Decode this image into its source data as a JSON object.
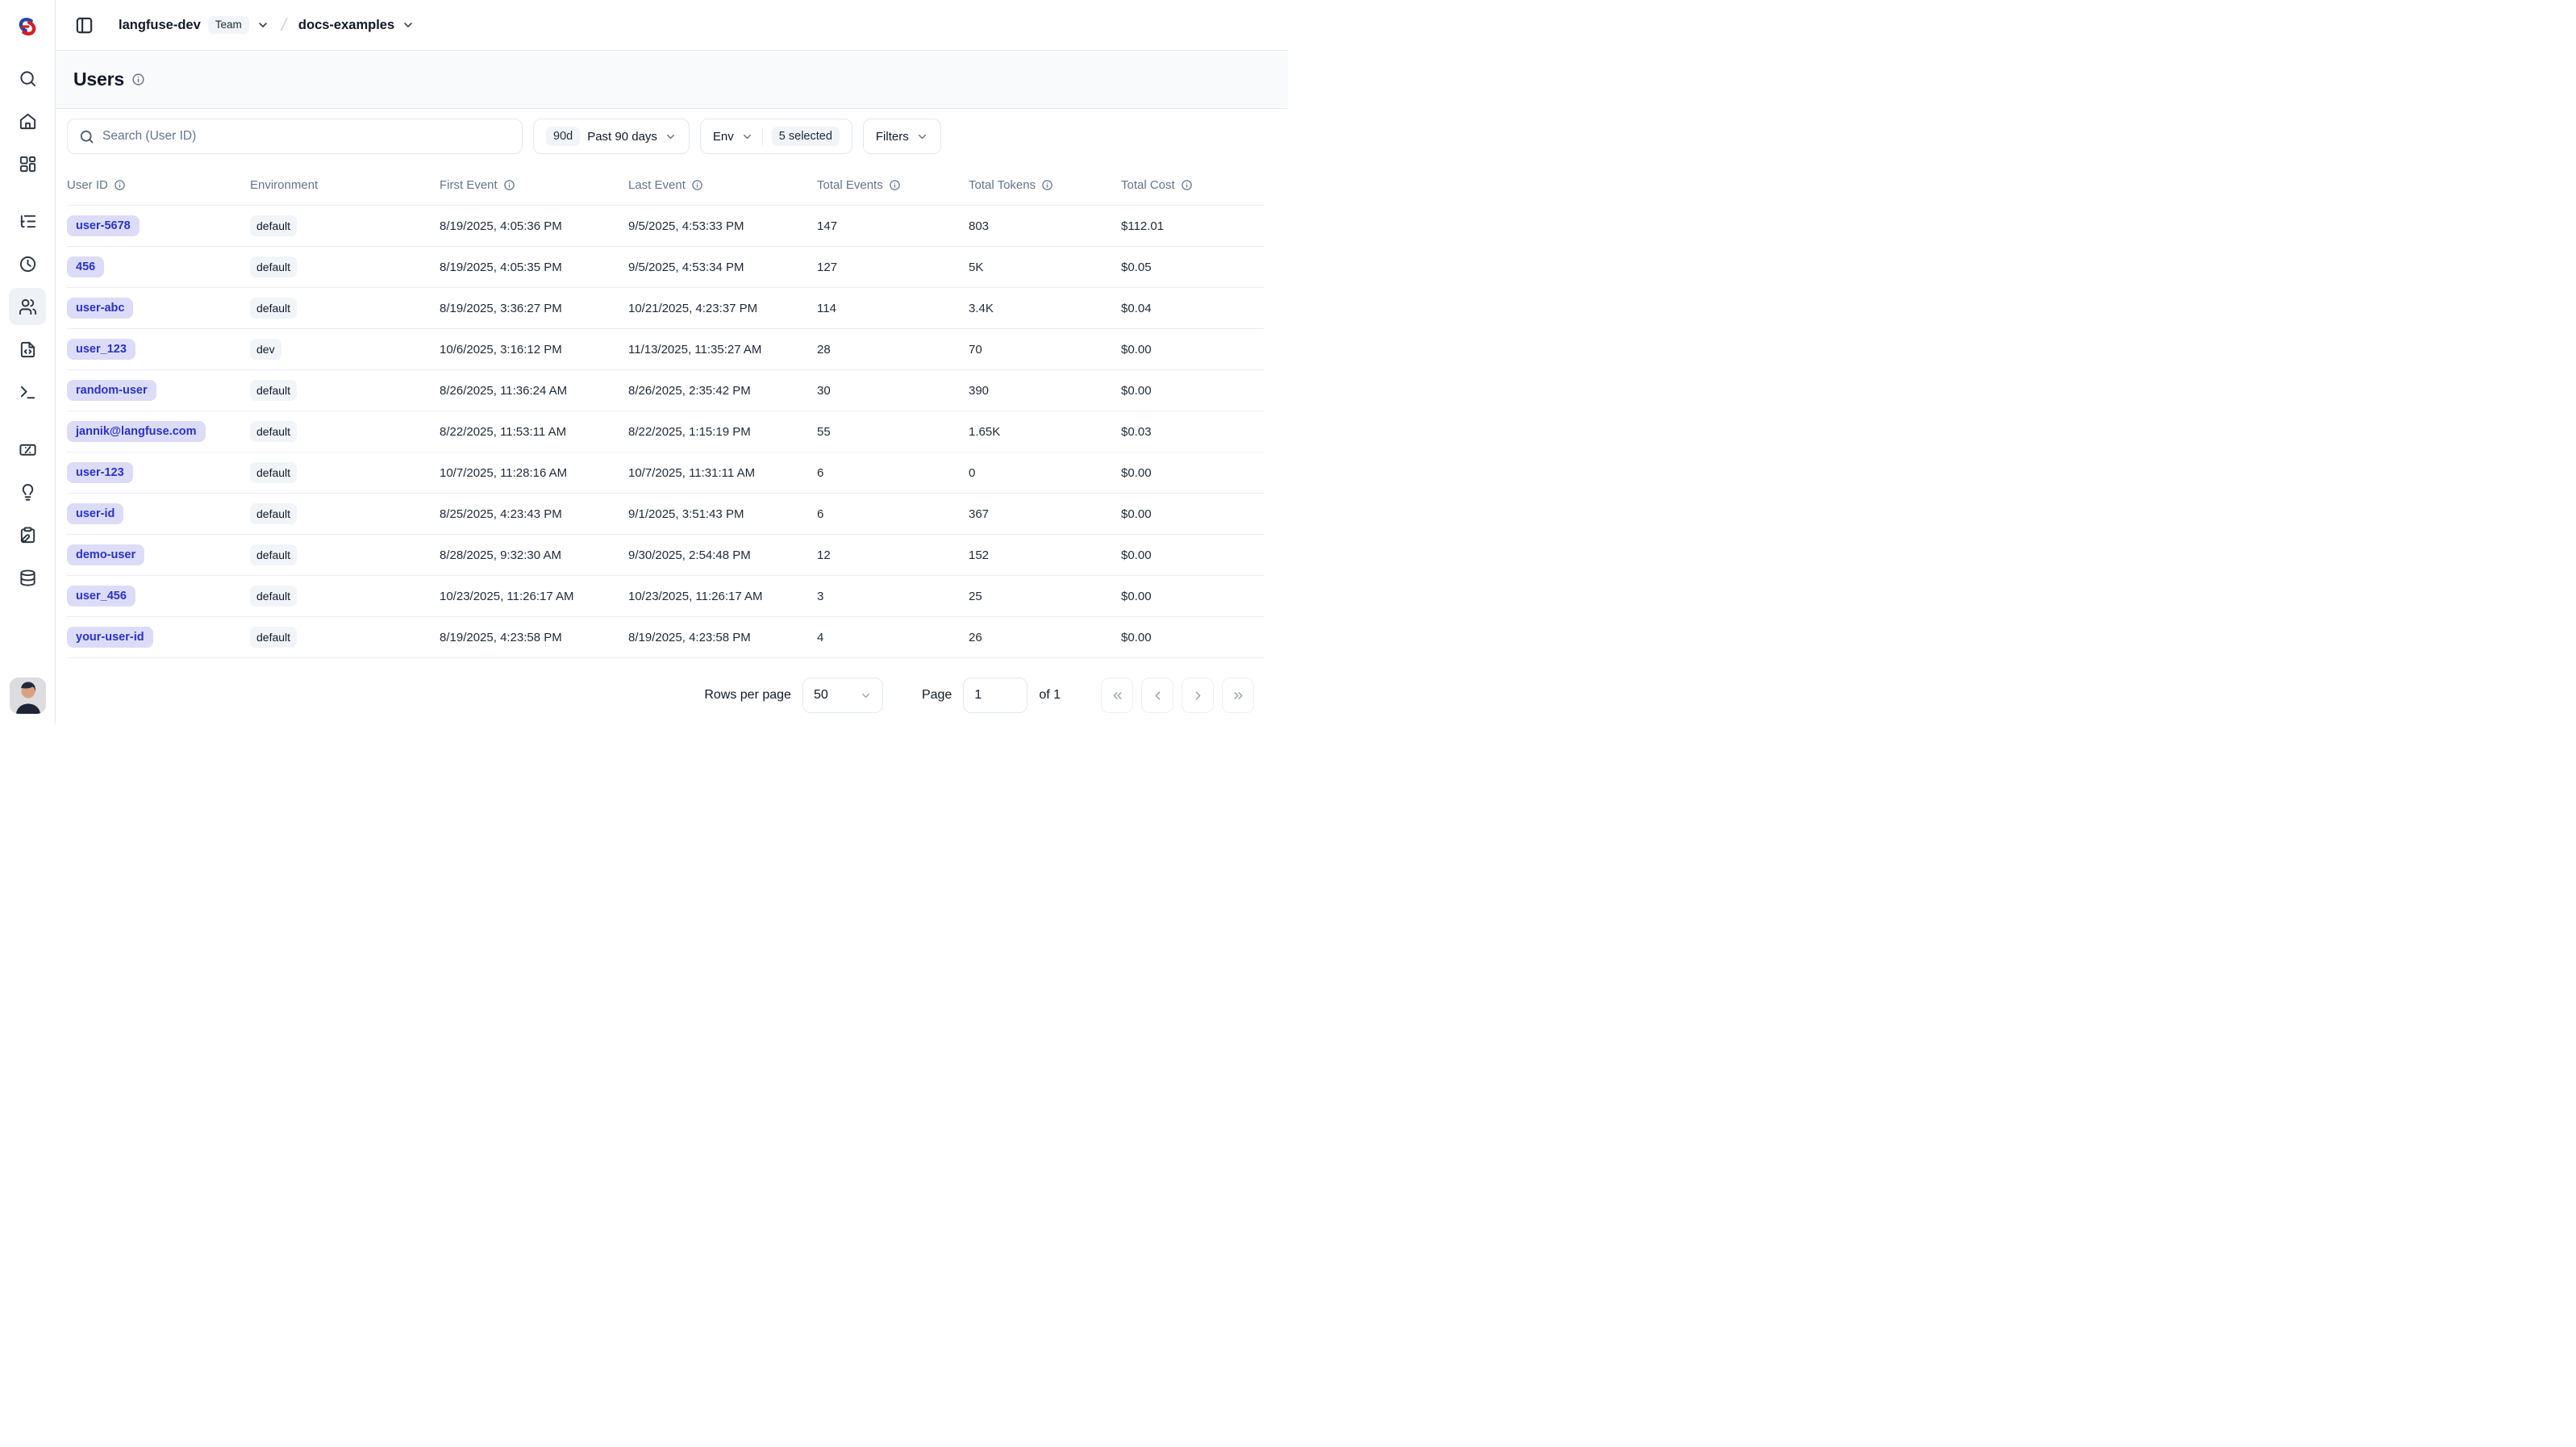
{
  "header": {
    "org": "langfuse-dev",
    "org_badge": "Team",
    "project": "docs-examples"
  },
  "page": {
    "title": "Users"
  },
  "filters": {
    "search_placeholder": "Search (User ID)",
    "date_badge": "90d",
    "date_label": "Past 90 days",
    "env_label": "Env",
    "env_selected": "5 selected",
    "filters_label": "Filters"
  },
  "sidebar": {
    "icons": [
      "search-icon",
      "home-icon",
      "dashboard-icon",
      "tracing-icon",
      "sessions-clock-icon",
      "users-icon",
      "prompts-file-code-icon",
      "playground-terminal-icon",
      "scores-percent-icon",
      "evals-lightbulb-icon",
      "annotation-clipboard-icon",
      "datasets-database-icon"
    ],
    "active_item": "users"
  },
  "table": {
    "columns": [
      {
        "key": "user-id",
        "label": "User ID",
        "info": true
      },
      {
        "key": "environment",
        "label": "Environment",
        "info": false
      },
      {
        "key": "first-event",
        "label": "First Event",
        "info": true
      },
      {
        "key": "last-event",
        "label": "Last Event",
        "info": true
      },
      {
        "key": "total-events",
        "label": "Total Events",
        "info": true
      },
      {
        "key": "total-tokens",
        "label": "Total Tokens",
        "info": true
      },
      {
        "key": "total-cost",
        "label": "Total Cost",
        "info": true
      }
    ],
    "rows": [
      {
        "user_id": "user-5678",
        "environment": "default",
        "first_event": "8/19/2025, 4:05:36 PM",
        "last_event": "9/5/2025, 4:53:33 PM",
        "total_events": "147",
        "total_tokens": "803",
        "total_cost": "$112.01"
      },
      {
        "user_id": "456",
        "environment": "default",
        "first_event": "8/19/2025, 4:05:35 PM",
        "last_event": "9/5/2025, 4:53:34 PM",
        "total_events": "127",
        "total_tokens": "5K",
        "total_cost": "$0.05"
      },
      {
        "user_id": "user-abc",
        "environment": "default",
        "first_event": "8/19/2025, 3:36:27 PM",
        "last_event": "10/21/2025, 4:23:37 PM",
        "total_events": "114",
        "total_tokens": "3.4K",
        "total_cost": "$0.04"
      },
      {
        "user_id": "user_123",
        "environment": "dev",
        "first_event": "10/6/2025, 3:16:12 PM",
        "last_event": "11/13/2025, 11:35:27 AM",
        "total_events": "28",
        "total_tokens": "70",
        "total_cost": "$0.00"
      },
      {
        "user_id": "random-user",
        "environment": "default",
        "first_event": "8/26/2025, 11:36:24 AM",
        "last_event": "8/26/2025, 2:35:42 PM",
        "total_events": "30",
        "total_tokens": "390",
        "total_cost": "$0.00"
      },
      {
        "user_id": "jannik@langfuse.com",
        "environment": "default",
        "first_event": "8/22/2025, 11:53:11 AM",
        "last_event": "8/22/2025, 1:15:19 PM",
        "total_events": "55",
        "total_tokens": "1.65K",
        "total_cost": "$0.03"
      },
      {
        "user_id": "user-123",
        "environment": "default",
        "first_event": "10/7/2025, 11:28:16 AM",
        "last_event": "10/7/2025, 11:31:11 AM",
        "total_events": "6",
        "total_tokens": "0",
        "total_cost": "$0.00"
      },
      {
        "user_id": "user-id",
        "environment": "default",
        "first_event": "8/25/2025, 4:23:43 PM",
        "last_event": "9/1/2025, 3:51:43 PM",
        "total_events": "6",
        "total_tokens": "367",
        "total_cost": "$0.00"
      },
      {
        "user_id": "demo-user",
        "environment": "default",
        "first_event": "8/28/2025, 9:32:30 AM",
        "last_event": "9/30/2025, 2:54:48 PM",
        "total_events": "12",
        "total_tokens": "152",
        "total_cost": "$0.00"
      },
      {
        "user_id": "user_456",
        "environment": "default",
        "first_event": "10/23/2025, 11:26:17 AM",
        "last_event": "10/23/2025, 11:26:17 AM",
        "total_events": "3",
        "total_tokens": "25",
        "total_cost": "$0.00"
      },
      {
        "user_id": "your-user-id",
        "environment": "default",
        "first_event": "8/19/2025, 4:23:58 PM",
        "last_event": "8/19/2025, 4:23:58 PM",
        "total_events": "4",
        "total_tokens": "26",
        "total_cost": "$0.00"
      }
    ]
  },
  "pagination": {
    "rows_per_page_label": "Rows per page",
    "rows_per_page_value": "50",
    "page_label": "Page",
    "page_value": "1",
    "of_label": "of 1"
  },
  "colors": {
    "accent_badge_bg": "#dcdcf9",
    "accent_badge_text": "#2b32c4",
    "soft_badge_bg": "#f1f5f9",
    "page_header_bg": "#f8fafc",
    "border": "#e5e7eb",
    "logo_red": "#d31f26",
    "logo_blue": "#2347a8"
  }
}
